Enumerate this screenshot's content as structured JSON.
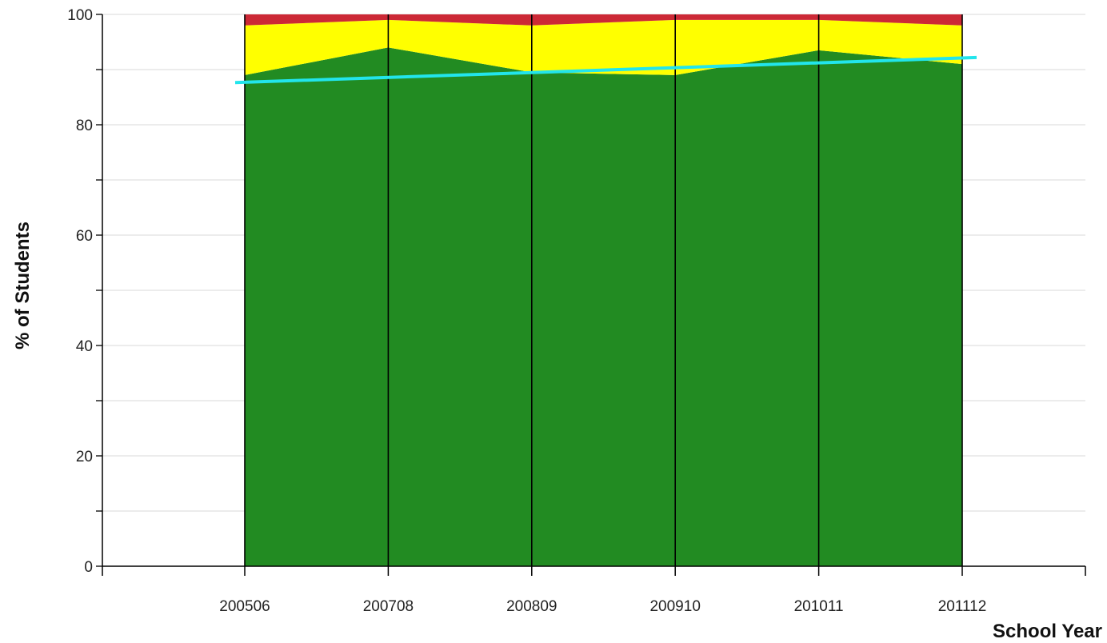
{
  "chart_data": {
    "type": "area",
    "stacked": true,
    "xlabel": "School Year",
    "ylabel": "% of Students",
    "ylim": [
      0,
      100
    ],
    "yticks": [
      0,
      20,
      40,
      60,
      80,
      100
    ],
    "categories": [
      "200506",
      "200708",
      "200809",
      "200910",
      "201011",
      "201112"
    ],
    "grid": true,
    "legend": "none",
    "series": [
      {
        "color": "#228B22",
        "values": [
          89.0,
          94.0,
          89.5,
          89.0,
          93.5,
          91.0
        ]
      },
      {
        "color": "#FFFF00",
        "values": [
          9.0,
          5.0,
          8.5,
          10.0,
          5.5,
          7.0
        ]
      },
      {
        "color": "#CC2936",
        "values": [
          2.0,
          1.0,
          2.0,
          1.0,
          1.0,
          2.0
        ]
      }
    ],
    "trendline": {
      "color": "#22E5EC",
      "start": 87.7,
      "end": 92.1
    },
    "colors": {
      "axis": "#000000",
      "grid": "#d8d8d8",
      "divider": "#000000"
    }
  }
}
